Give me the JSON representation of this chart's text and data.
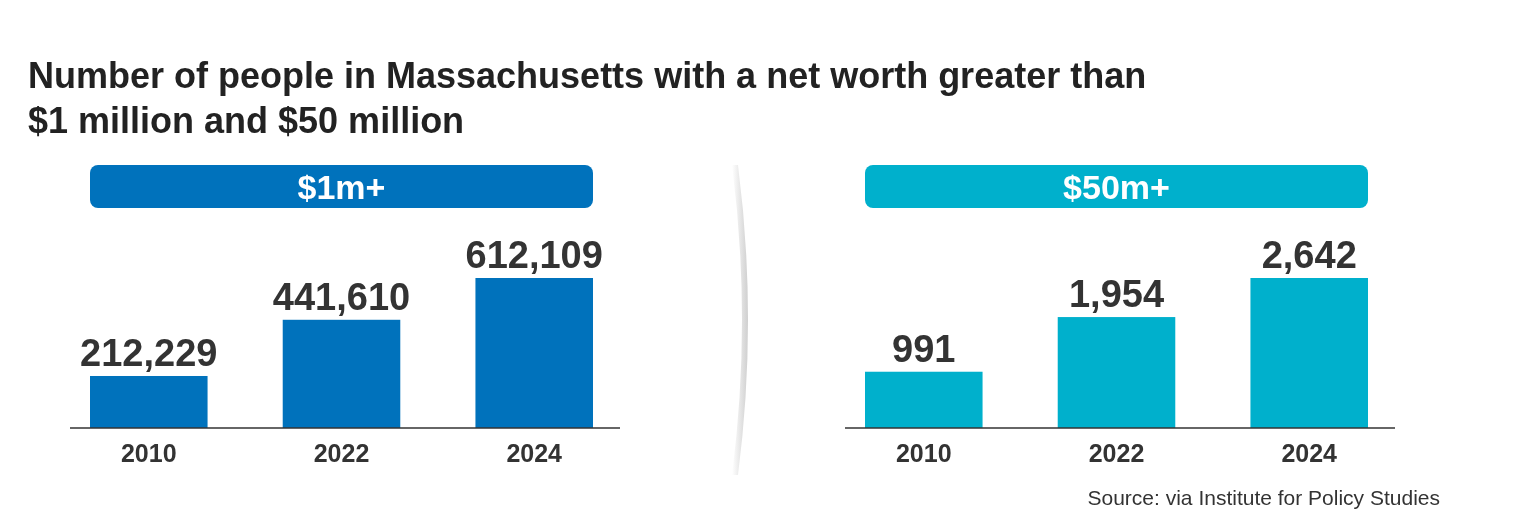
{
  "chart_data": [
    {
      "type": "bar",
      "title": "Number of people in Massachusetts with a net worth greater than $1 million and $50 million",
      "subtitle": "$1m+",
      "categories": [
        "2010",
        "2022",
        "2024"
      ],
      "values": [
        212229,
        441610,
        612109
      ],
      "value_labels": [
        "212,229",
        "441,610",
        "612,109"
      ],
      "color": "#0072bc"
    },
    {
      "type": "bar",
      "subtitle": "$50m+",
      "categories": [
        "2010",
        "2022",
        "2024"
      ],
      "values": [
        991,
        1954,
        2642
      ],
      "value_labels": [
        "991",
        "1,954",
        "2,642"
      ],
      "color": "#00b0cc",
      "annotations": [
        "Source: via Institute for Policy Studies"
      ]
    }
  ]
}
